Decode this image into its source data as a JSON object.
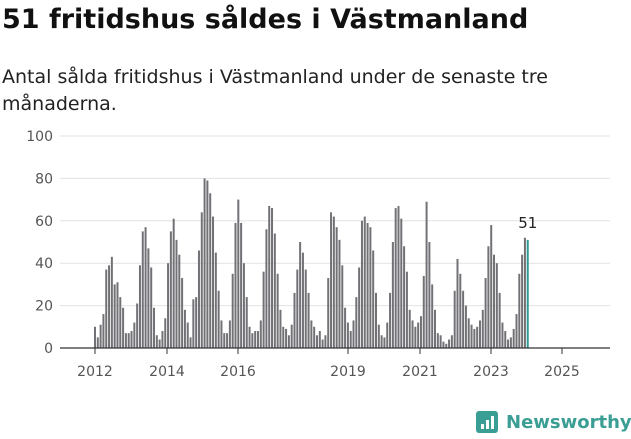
{
  "header": {
    "title": "51 fritidshus såldes i Västmanland",
    "subtitle": "Antal sålda fritidshus i Västmanland under de senaste tre månaderna."
  },
  "brand": {
    "name": "Newsworthy",
    "icon": "newsworthy-logo-icon",
    "color": "#3a9e94"
  },
  "chart_data": {
    "type": "bar",
    "title": "",
    "xlabel": "",
    "ylabel": "",
    "ylim": [
      0,
      100
    ],
    "yticks": [
      0,
      20,
      40,
      60,
      80,
      100
    ],
    "xticks": [
      "2012",
      "2014",
      "2016",
      "2019",
      "2021",
      "2023",
      "2025"
    ],
    "grid": true,
    "bar_color": "#727176",
    "highlight_color": "#2f9a91",
    "highlight_label": "51",
    "values": [
      10,
      5,
      11,
      16,
      37,
      39,
      43,
      30,
      31,
      24,
      19,
      7,
      7,
      8,
      12,
      21,
      39,
      55,
      57,
      47,
      38,
      19,
      6,
      4,
      8,
      14,
      40,
      55,
      61,
      51,
      44,
      33,
      18,
      12,
      5,
      23,
      24,
      46,
      64,
      80,
      79,
      73,
      62,
      45,
      27,
      13,
      7,
      7,
      13,
      35,
      59,
      70,
      59,
      40,
      24,
      10,
      7,
      8,
      8,
      13,
      36,
      56,
      67,
      66,
      54,
      35,
      18,
      10,
      9,
      6,
      11,
      26,
      37,
      50,
      45,
      37,
      26,
      13,
      10,
      6,
      8,
      4,
      6,
      33,
      64,
      62,
      57,
      51,
      39,
      19,
      12,
      8,
      13,
      24,
      38,
      60,
      62,
      59,
      57,
      46,
      26,
      11,
      6,
      5,
      12,
      26,
      50,
      66,
      67,
      61,
      48,
      36,
      18,
      13,
      10,
      12,
      15,
      34,
      69,
      50,
      30,
      18,
      7,
      6,
      3,
      2,
      4,
      6,
      27,
      42,
      35,
      27,
      20,
      14,
      11,
      9,
      10,
      13,
      18,
      33,
      48,
      58,
      44,
      40,
      26,
      12,
      8,
      4,
      5,
      9,
      16,
      35,
      44,
      52,
      51
    ]
  }
}
